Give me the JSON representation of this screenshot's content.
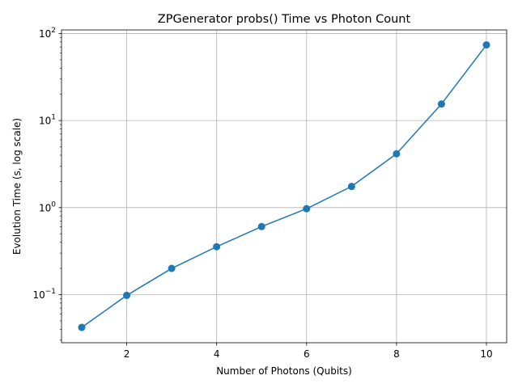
{
  "chart_data": {
    "type": "line",
    "title": "ZPGenerator probs() Time vs Photon Count",
    "xlabel": "Number of Photons (Qubits)",
    "ylabel": "Evolution Time (s, log scale)",
    "x": [
      1,
      2,
      3,
      4,
      5,
      6,
      7,
      8,
      9,
      10
    ],
    "series": [
      {
        "values": [
          0.042,
          0.098,
          0.2,
          0.355,
          0.605,
          0.97,
          1.75,
          4.15,
          15.5,
          74.0
        ]
      }
    ],
    "xlim": [
      0.55,
      10.45
    ],
    "ylim": [
      0.028,
      110
    ],
    "yscale": "log",
    "x_ticks": [
      2,
      4,
      6,
      8,
      10
    ],
    "x_tick_labels": [
      "2",
      "4",
      "6",
      "8",
      "10"
    ],
    "y_ticks": [
      0.1,
      1,
      10,
      100
    ],
    "y_tick_labels": [
      {
        "base": "10",
        "exp": "−1"
      },
      {
        "base": "10",
        "exp": "0"
      },
      {
        "base": "10",
        "exp": "1"
      },
      {
        "base": "10",
        "exp": "2"
      }
    ],
    "grid": true,
    "line_color": "#1f77b4",
    "marker": "circle"
  }
}
